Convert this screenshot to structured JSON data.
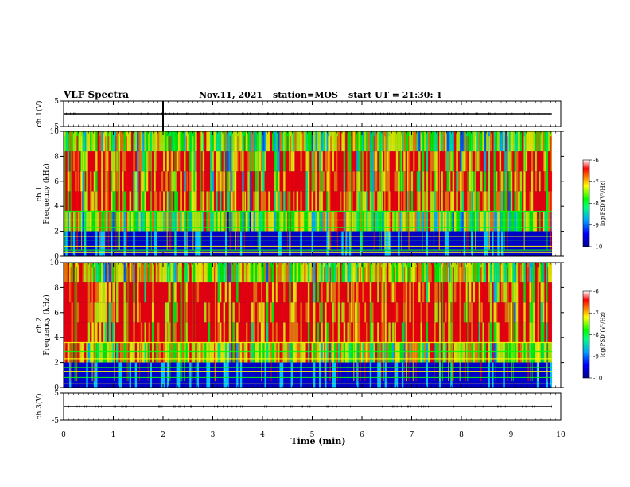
{
  "header": {
    "title": "VLF Spectra",
    "date": "Nov.11, 2021",
    "station": "station=MOS",
    "start": "start UT =  21:30: 1"
  },
  "chart_data": [
    {
      "type": "line",
      "panel": "ch1-waveform",
      "ylabel": "ch.1(V)",
      "ylim": [
        -5,
        5
      ],
      "yticks": [
        "5",
        "-5"
      ],
      "xlim": [
        0,
        10
      ],
      "series": [
        {
          "x": [
            0,
            9.82
          ],
          "y": [
            0,
            0
          ]
        }
      ]
    },
    {
      "type": "heatmap",
      "panel": "ch1-spectrogram",
      "ylabel": "ch.1\nFrequency (kHz)",
      "ylim": [
        0,
        10
      ],
      "yticks": [
        "0",
        "2",
        "4",
        "6",
        "8",
        "10"
      ],
      "xlim": [
        0,
        10
      ],
      "colorbar": {
        "label": "log(PSD)(V²/Hz)",
        "range": [
          -10,
          -6
        ],
        "ticks": [
          "-6",
          "-7",
          "-8",
          "-9",
          "-10"
        ]
      },
      "bands_khz": [
        0.3,
        0.5,
        0.8,
        1.3,
        1.6,
        2.3,
        2.9,
        3.6
      ]
    },
    {
      "type": "heatmap",
      "panel": "ch2-spectrogram",
      "ylabel": "ch.2\nFrequency (kHz)",
      "ylim": [
        0,
        10
      ],
      "yticks": [
        "0",
        "2",
        "4",
        "6",
        "8",
        "10"
      ],
      "xlim": [
        0,
        10
      ],
      "colorbar": {
        "label": "log(PSD)(V²/Hz)",
        "range": [
          -10,
          -6
        ],
        "ticks": [
          "-6",
          "-7",
          "-8",
          "-9",
          "-10"
        ]
      },
      "bands_khz": [
        0.3,
        0.8,
        1.3,
        1.6,
        2.3,
        2.9,
        3.6
      ]
    },
    {
      "type": "line",
      "panel": "ch3-waveform",
      "ylabel": "ch.3(V)",
      "ylim": [
        -5,
        5
      ],
      "yticks": [
        "5",
        "-5"
      ],
      "xlim": [
        0,
        10
      ],
      "xlabel": "Time (min)",
      "xticks": [
        "0",
        "1",
        "2",
        "3",
        "4",
        "5",
        "6",
        "7",
        "8",
        "9",
        "10"
      ],
      "series": [
        {
          "x": [
            0,
            9.82
          ],
          "y": [
            0,
            0
          ]
        }
      ]
    }
  ],
  "colors": {
    "frame": "#000000",
    "background": "#ffffff",
    "colormap": [
      "#00008c",
      "#0000ff",
      "#0080ff",
      "#00ffff",
      "#00ff00",
      "#ffff00",
      "#ff8000",
      "#ff0000",
      "#ffffff"
    ]
  }
}
